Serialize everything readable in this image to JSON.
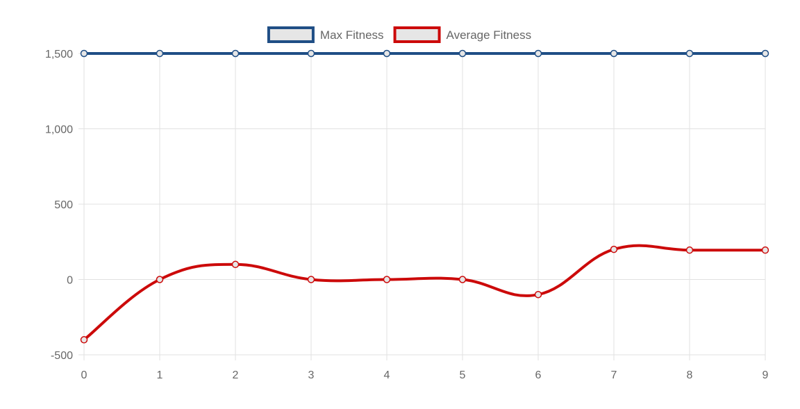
{
  "chart_data": {
    "type": "line",
    "x": [
      0,
      1,
      2,
      3,
      4,
      5,
      6,
      7,
      8,
      9
    ],
    "x_tick_labels": [
      "0",
      "1",
      "2",
      "3",
      "4",
      "5",
      "6",
      "7",
      "8",
      "9"
    ],
    "y_ticks": [
      -500,
      0,
      500,
      1000,
      1500
    ],
    "y_tick_labels": [
      "-500",
      "0",
      "500",
      "1,000",
      "1,500"
    ],
    "ylim": [
      -500,
      1500
    ],
    "xlim": [
      0,
      9
    ],
    "grid": true,
    "legend_position": "top-center",
    "series": [
      {
        "name": "Max Fitness",
        "color": "#1f4e85",
        "values": [
          1500,
          1500,
          1500,
          1500,
          1500,
          1500,
          1500,
          1500,
          1500,
          1500
        ]
      },
      {
        "name": "Average Fitness",
        "color": "#cc0a0a",
        "values": [
          -400,
          0,
          100,
          0,
          0,
          0,
          -100,
          200,
          195,
          195
        ]
      }
    ],
    "legend_box_fill": "#e6e6e6",
    "grid_color": "#e1e1e1",
    "tick_color": "#666666"
  }
}
